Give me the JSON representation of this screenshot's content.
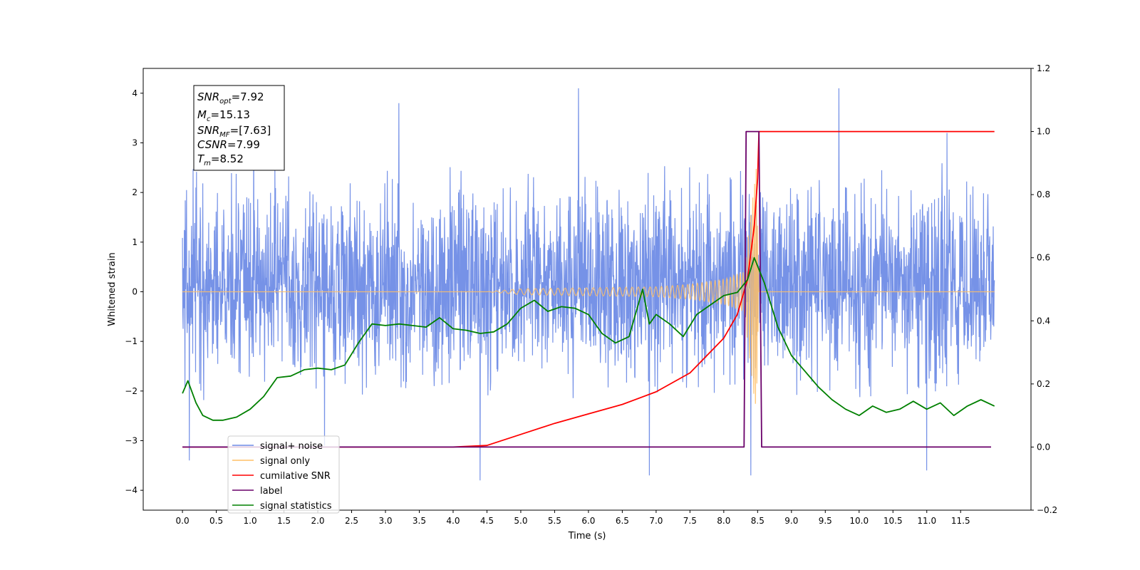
{
  "chart_data": {
    "type": "line",
    "xlabel": "Time (s)",
    "ylabel": "Whitened strain",
    "xlim": [
      -0.58,
      12.54
    ],
    "ylim": [
      -4.4,
      4.5
    ],
    "y2lim": [
      -0.2,
      1.2
    ],
    "xticks": [
      0.0,
      0.5,
      1.0,
      1.5,
      2.0,
      2.5,
      3.0,
      3.5,
      4.0,
      4.5,
      5.0,
      5.5,
      6.0,
      6.5,
      7.0,
      7.5,
      8.0,
      8.5,
      9.0,
      9.5,
      10.0,
      10.5,
      11.0,
      11.5
    ],
    "xtick_labels": [
      "0.0",
      "0.5",
      "1.0",
      "1.5",
      "2.0",
      "2.5",
      "3.0",
      "3.5",
      "4.0",
      "4.5",
      "5.0",
      "5.5",
      "6.0",
      "6.5",
      "7.0",
      "7.5",
      "8.0",
      "8.5",
      "9.0",
      "9.5",
      "10.0",
      "10.5",
      "11.0",
      "11.5"
    ],
    "yticks": [
      -4,
      -3,
      -2,
      -1,
      0,
      1,
      2,
      3,
      4
    ],
    "ytick_labels": [
      "−4",
      "−3",
      "−2",
      "−1",
      "0",
      "1",
      "2",
      "3",
      "4"
    ],
    "y2ticks": [
      -0.2,
      0.0,
      0.2,
      0.4,
      0.6,
      0.8,
      1.0,
      1.2
    ],
    "y2tick_labels": [
      "−0.2",
      "0.0",
      "0.2",
      "0.4",
      "0.6",
      "0.8",
      "1.0",
      "1.2"
    ],
    "grid": false,
    "legend_position": "lower-left",
    "legend": [
      {
        "label": "signal+ noise",
        "color": "#6f8ce6"
      },
      {
        "label": "signal only",
        "color": "#ffbf66"
      },
      {
        "label": "cumilative SNR",
        "color": "#ff0000"
      },
      {
        "label": "label",
        "color": "#6a006a"
      },
      {
        "label": "signal statistics",
        "color": "#008000"
      }
    ],
    "info_box": {
      "snr_opt": {
        "base": "SNR",
        "sub": "opt",
        "value": "=7.92"
      },
      "mc": {
        "base": "M",
        "sub": "c",
        "value": "=15.13"
      },
      "snr_mf": {
        "base": "SNR",
        "sub": "MF",
        "value": "=[7.63]"
      },
      "csnr": {
        "base": "CSNR",
        "value": "=7.99"
      },
      "tm": {
        "base": "T",
        "sub": "m",
        "value": "=8.52"
      }
    },
    "series": [
      {
        "name": "signal+ noise",
        "axis": "left",
        "t_range": [
          0.0,
          12.0
        ],
        "envelope_typical": [
          -2.2,
          2.6
        ],
        "noise_maxima": [
          [
            0.2,
            2.1
          ],
          [
            1.05,
            3.5
          ],
          [
            3.2,
            3.8
          ],
          [
            5.85,
            4.1
          ],
          [
            6.9,
            3.3
          ],
          [
            9.7,
            4.1
          ],
          [
            11.3,
            3.2
          ]
        ],
        "noise_minima": [
          [
            0.1,
            -3.4
          ],
          [
            2.1,
            -3.1
          ],
          [
            4.4,
            -3.8
          ],
          [
            6.9,
            -3.7
          ],
          [
            8.4,
            -3.7
          ],
          [
            11.0,
            -3.6
          ]
        ]
      },
      {
        "name": "signal only",
        "axis": "left",
        "t_range": [
          0.0,
          12.0
        ],
        "chirp_peak_time": 8.4,
        "amplitude_points": [
          [
            4.5,
            0.0
          ],
          [
            5.0,
            0.06
          ],
          [
            6.0,
            0.08
          ],
          [
            7.0,
            0.1
          ],
          [
            7.5,
            0.15
          ],
          [
            8.0,
            0.25
          ],
          [
            8.3,
            0.4
          ],
          [
            8.48,
            2.5
          ],
          [
            8.52,
            0.0
          ],
          [
            12.0,
            0.0
          ]
        ]
      },
      {
        "name": "cumilative SNR",
        "axis": "right",
        "points": [
          [
            0.0,
            0.0
          ],
          [
            4.0,
            0.0
          ],
          [
            4.5,
            0.005
          ],
          [
            5.0,
            0.04
          ],
          [
            5.5,
            0.075
          ],
          [
            6.0,
            0.105
          ],
          [
            6.5,
            0.135
          ],
          [
            7.0,
            0.175
          ],
          [
            7.5,
            0.235
          ],
          [
            8.0,
            0.345
          ],
          [
            8.2,
            0.42
          ],
          [
            8.35,
            0.53
          ],
          [
            8.45,
            0.7
          ],
          [
            8.5,
            0.85
          ],
          [
            8.52,
            1.0
          ],
          [
            12.0,
            1.0
          ]
        ]
      },
      {
        "name": "label",
        "axis": "right",
        "points": [
          [
            0.0,
            0.0
          ],
          [
            8.3,
            0.0
          ],
          [
            8.33,
            1.0
          ],
          [
            8.52,
            1.0
          ],
          [
            8.56,
            0.0
          ],
          [
            11.95,
            0.0
          ]
        ]
      },
      {
        "name": "signal statistics",
        "axis": "right",
        "points": [
          [
            0.0,
            0.17
          ],
          [
            0.08,
            0.21
          ],
          [
            0.2,
            0.14
          ],
          [
            0.3,
            0.1
          ],
          [
            0.45,
            0.085
          ],
          [
            0.6,
            0.085
          ],
          [
            0.8,
            0.095
          ],
          [
            1.0,
            0.12
          ],
          [
            1.2,
            0.16
          ],
          [
            1.4,
            0.22
          ],
          [
            1.6,
            0.225
          ],
          [
            1.8,
            0.245
          ],
          [
            2.0,
            0.25
          ],
          [
            2.2,
            0.245
          ],
          [
            2.4,
            0.26
          ],
          [
            2.6,
            0.33
          ],
          [
            2.8,
            0.39
          ],
          [
            3.0,
            0.385
          ],
          [
            3.2,
            0.39
          ],
          [
            3.4,
            0.385
          ],
          [
            3.6,
            0.38
          ],
          [
            3.8,
            0.41
          ],
          [
            4.0,
            0.375
          ],
          [
            4.2,
            0.37
          ],
          [
            4.4,
            0.36
          ],
          [
            4.6,
            0.365
          ],
          [
            4.8,
            0.39
          ],
          [
            5.0,
            0.44
          ],
          [
            5.2,
            0.465
          ],
          [
            5.4,
            0.43
          ],
          [
            5.6,
            0.445
          ],
          [
            5.8,
            0.44
          ],
          [
            6.0,
            0.42
          ],
          [
            6.2,
            0.36
          ],
          [
            6.4,
            0.33
          ],
          [
            6.6,
            0.35
          ],
          [
            6.8,
            0.5
          ],
          [
            6.9,
            0.39
          ],
          [
            7.0,
            0.42
          ],
          [
            7.2,
            0.39
          ],
          [
            7.4,
            0.35
          ],
          [
            7.6,
            0.42
          ],
          [
            7.8,
            0.45
          ],
          [
            8.0,
            0.48
          ],
          [
            8.2,
            0.49
          ],
          [
            8.35,
            0.53
          ],
          [
            8.45,
            0.6
          ],
          [
            8.6,
            0.52
          ],
          [
            8.8,
            0.38
          ],
          [
            9.0,
            0.29
          ],
          [
            9.2,
            0.24
          ],
          [
            9.4,
            0.19
          ],
          [
            9.6,
            0.15
          ],
          [
            9.8,
            0.12
          ],
          [
            10.0,
            0.1
          ],
          [
            10.2,
            0.13
          ],
          [
            10.4,
            0.11
          ],
          [
            10.6,
            0.12
          ],
          [
            10.8,
            0.145
          ],
          [
            11.0,
            0.12
          ],
          [
            11.2,
            0.14
          ],
          [
            11.4,
            0.1
          ],
          [
            11.6,
            0.13
          ],
          [
            11.8,
            0.15
          ],
          [
            12.0,
            0.13
          ]
        ]
      }
    ]
  }
}
